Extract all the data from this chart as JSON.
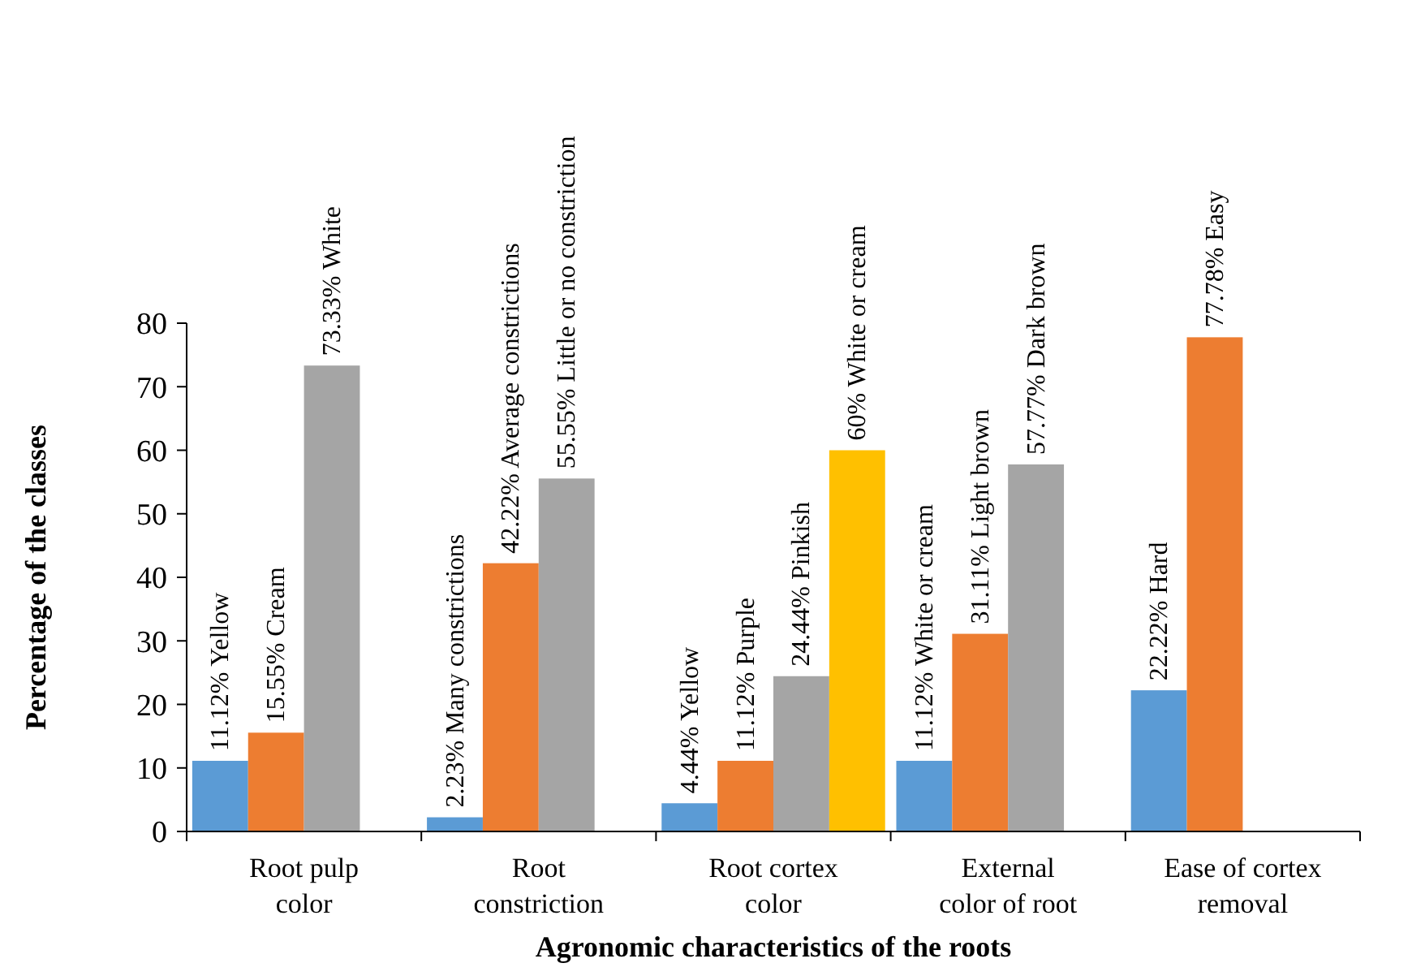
{
  "chart_data": {
    "type": "bar",
    "xlabel": "Agronomic characteristics of the roots",
    "ylabel": "Percentage of the classes",
    "categories": [
      "Root pulp\ncolor",
      "Root\nconstriction",
      "Root cortex\ncolor",
      "External\ncolor of root",
      "Ease of cortex\nremoval"
    ],
    "series": [
      {
        "color": "#5b9bd5",
        "values": [
          11.12,
          2.23,
          4.44,
          11.12,
          22.22
        ],
        "value_labels": [
          "11.12% Yellow",
          "2.23% Many constrictions",
          "4.44% Yellow",
          "11.12% White or cream",
          "22.22% Hard"
        ]
      },
      {
        "color": "#ed7d31",
        "values": [
          15.55,
          42.22,
          11.12,
          31.11,
          77.78
        ],
        "value_labels": [
          "15.55% Cream",
          "42.22% Average constrictions",
          "11.12% Purple",
          "31.11% Light brown",
          "77.78% Easy"
        ]
      },
      {
        "color": "#a5a5a5",
        "values": [
          73.33,
          55.55,
          24.44,
          57.77,
          null
        ],
        "value_labels": [
          "73.33% White",
          "55.55% Little or no constriction",
          "24.44% Pinkish",
          "57.77% Dark brown",
          null
        ]
      },
      {
        "color": "#ffc000",
        "values": [
          null,
          null,
          60,
          null,
          null
        ],
        "value_labels": [
          null,
          null,
          "60% White or cream",
          null,
          null
        ]
      }
    ],
    "ylim": [
      0,
      80
    ],
    "yticks": [
      0,
      10,
      20,
      30,
      40,
      50,
      60,
      70,
      80
    ],
    "grid": false
  }
}
